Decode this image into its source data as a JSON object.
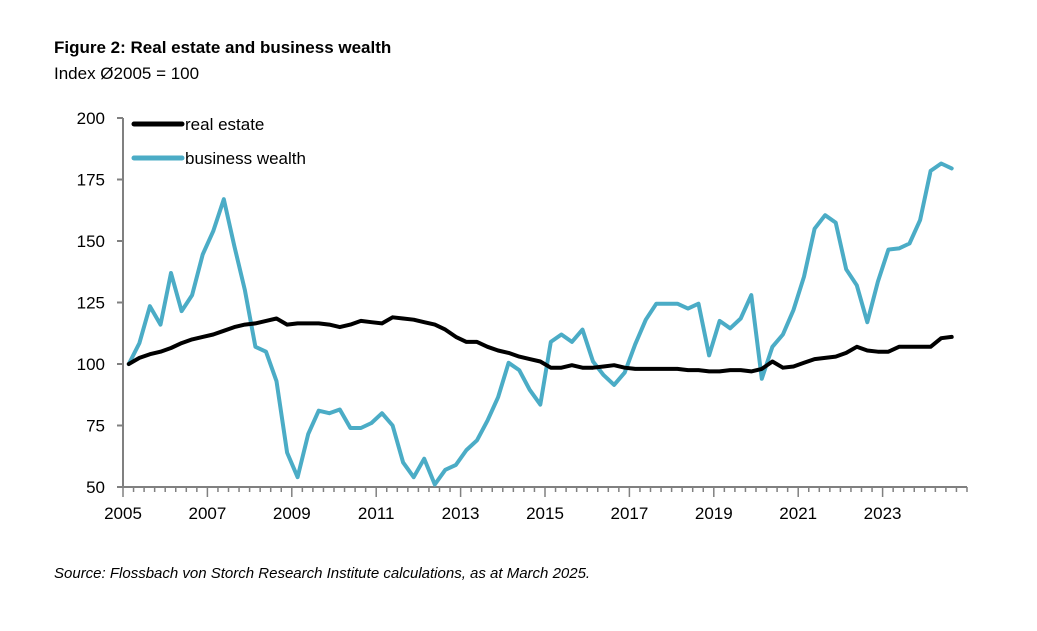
{
  "header": {
    "title": "Figure 2: Real estate and business wealth",
    "subtitle": "Index Ø2005 = 100"
  },
  "footer": {
    "source": "Source: Flossbach von Storch Research Institute calculations, as at March 2025."
  },
  "colors": {
    "real_estate": "#000000",
    "business_wealth": "#4bacc6",
    "axis": "#808080"
  },
  "chart_data": {
    "type": "line",
    "title": "Figure 2: Real estate and business wealth",
    "subtitle": "Index Ø2005 = 100",
    "xlabel": "",
    "ylabel": "",
    "frequency": "quarterly",
    "x_start": "2005Q1",
    "x_end": "2024Q3",
    "xlim": [
      2005,
      2025
    ],
    "ylim": [
      50,
      200
    ],
    "yticks": [
      50,
      75,
      100,
      125,
      150,
      175,
      200
    ],
    "xticks": [
      "2005",
      "2007",
      "2009",
      "2011",
      "2013",
      "2015",
      "2017",
      "2019",
      "2021",
      "2023"
    ],
    "grid": false,
    "legend_position": "top-left",
    "series": [
      {
        "name": "real estate",
        "color": "#000000",
        "values": [
          100,
          102.5,
          104,
          105,
          106.5,
          108.5,
          110,
          111,
          112,
          113.5,
          115,
          116,
          116.5,
          117.5,
          118.5,
          116,
          116.5,
          116.5,
          116.5,
          116,
          115,
          116,
          117.5,
          117,
          116.5,
          119,
          118.5,
          118,
          117,
          116,
          114,
          111,
          109,
          109,
          107,
          105.5,
          104.5,
          103,
          102,
          101,
          98.5,
          98.5,
          99.5,
          98.5,
          98.5,
          99,
          99.5,
          98.5,
          98,
          98,
          98,
          98,
          98,
          97.5,
          97.5,
          97,
          97,
          97.5,
          97.5,
          97,
          98,
          101,
          98.5,
          99,
          100.5,
          102,
          102.5,
          103,
          104.5,
          107,
          105.5,
          105,
          105,
          107,
          107,
          107,
          107,
          110.5,
          111
        ]
      },
      {
        "name": "business wealth",
        "color": "#4bacc6",
        "values": [
          100,
          108.5,
          123.5,
          116,
          137,
          121.5,
          128,
          144.5,
          154,
          167,
          148,
          130,
          107,
          105,
          93,
          64,
          54,
          71.5,
          81,
          80,
          81.5,
          74,
          74,
          76,
          80,
          75,
          60,
          54,
          61.5,
          51,
          57,
          59,
          65,
          69,
          77,
          86.5,
          100.5,
          97.5,
          89.5,
          83.5,
          109,
          112,
          109,
          114,
          101,
          95.5,
          91.5,
          96.5,
          108,
          118,
          124.5,
          124.5,
          124.5,
          122.5,
          124.5,
          103.5,
          117.5,
          114.5,
          118.5,
          128,
          94,
          107,
          112,
          122,
          135.5,
          155,
          160.5,
          157.5,
          138.5,
          132,
          117,
          133.5,
          146.5,
          147,
          149,
          158.5,
          178.5,
          181.5,
          179.5
        ]
      }
    ]
  }
}
